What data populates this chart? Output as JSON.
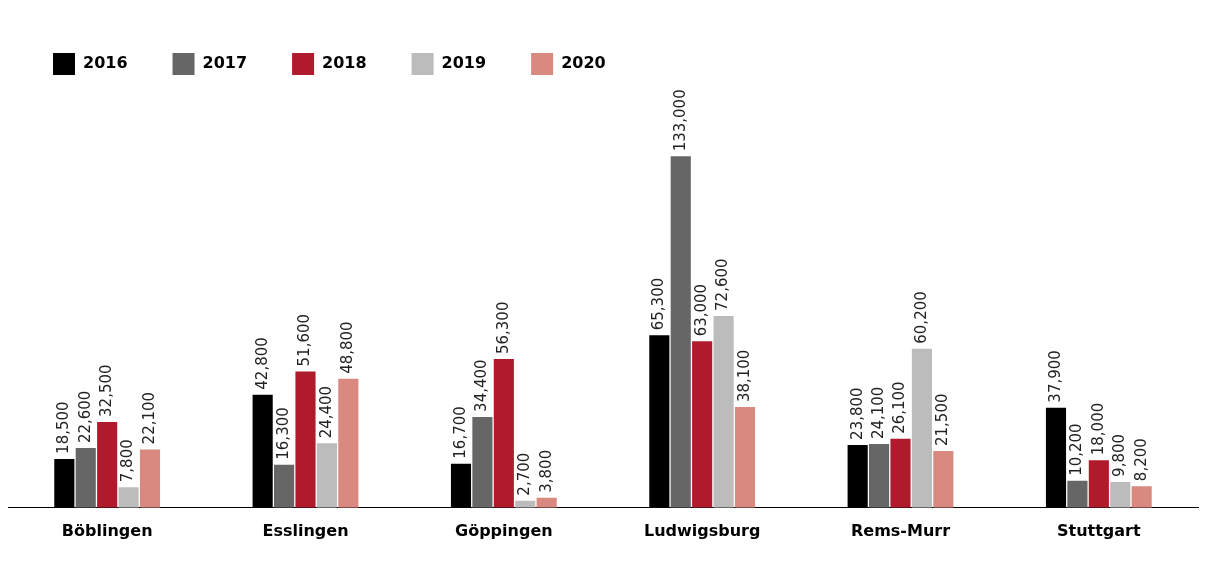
{
  "chart_data": {
    "type": "bar",
    "categories": [
      "Böblingen",
      "Esslingen",
      "Göppingen",
      "Ludwigsburg",
      "Rems-Murr",
      "Stuttgart"
    ],
    "series": [
      {
        "name": "2016",
        "color": "#000000",
        "values": [
          18500,
          42800,
          16700,
          65300,
          23800,
          37900
        ],
        "value_labels": [
          "18,500",
          "42,800",
          "16,700",
          "65,300",
          "23,800",
          "37,900"
        ]
      },
      {
        "name": "2017",
        "color": "#666666",
        "values": [
          22600,
          16300,
          34400,
          133000,
          24100,
          10200
        ],
        "value_labels": [
          "22,600",
          "16,300",
          "34,400",
          "133,000",
          "24,100",
          "10,200"
        ]
      },
      {
        "name": "2018",
        "color": "#b01a2d",
        "values": [
          32500,
          51600,
          56300,
          63000,
          26100,
          18000
        ],
        "value_labels": [
          "32,500",
          "51,600",
          "56,300",
          "63,000",
          "26,100",
          "18,000"
        ]
      },
      {
        "name": "2019",
        "color": "#bcbcbc",
        "values": [
          7800,
          24400,
          2700,
          72600,
          60200,
          9800
        ],
        "value_labels": [
          "7,800",
          "24,400",
          "2,700",
          "72,600",
          "60,200",
          "9,800"
        ]
      },
      {
        "name": "2020",
        "color": "#d9897f",
        "values": [
          22100,
          48800,
          3800,
          38100,
          21500,
          8200
        ],
        "value_labels": [
          "22,100",
          "48,800",
          "3,800",
          "38,100",
          "21,500",
          "8,200"
        ]
      }
    ],
    "legend": "top left",
    "tick_labels": "x"
  }
}
